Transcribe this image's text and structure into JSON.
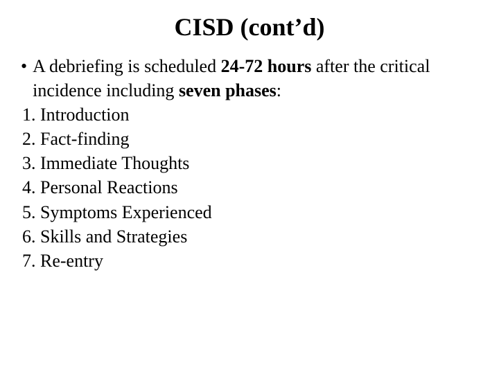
{
  "slide": {
    "title": "CISD (cont’d)",
    "title_fontsize": 36,
    "body_fontsize": 26,
    "text_color": "#000000",
    "background_color": "#ffffff",
    "bullet_marker": "•",
    "bullet_pre": "A debriefing is scheduled ",
    "bullet_bold1": "24-72 hours",
    "bullet_mid": " after the critical incidence including ",
    "bullet_bold2": "seven phases",
    "bullet_post": ":",
    "phases": [
      "1. Introduction",
      "2. Fact-finding",
      "3. Immediate Thoughts",
      "4. Personal Reactions",
      "5. Symptoms Experienced",
      "6. Skills and Strategies",
      "7. Re-entry"
    ]
  }
}
